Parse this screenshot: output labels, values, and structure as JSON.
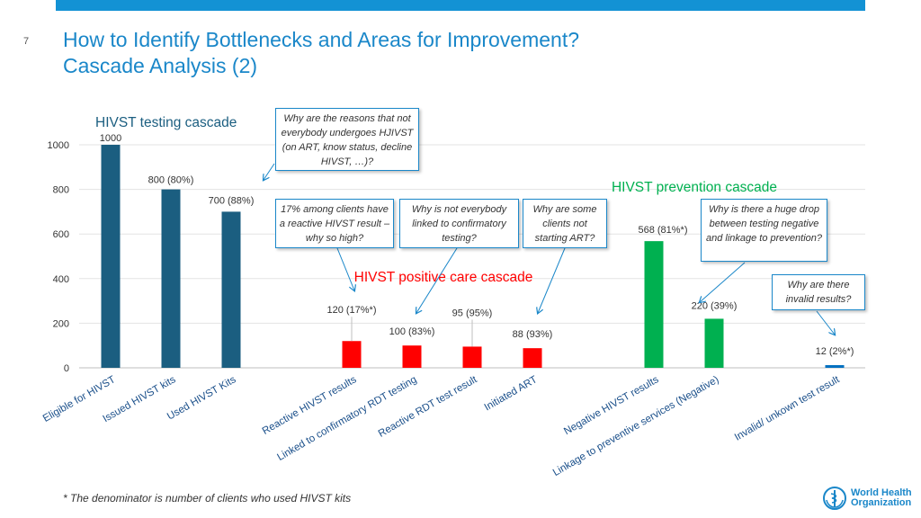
{
  "slide_number": "7",
  "title_line1": "How to Identify Bottlenecks and Areas for Improvement?",
  "title_line2": "Cascade Analysis (2)",
  "callouts": [
    "Why are the reasons that not everybody undergoes HJIVST (on ART, know status, decline HIVST, …)?",
    "17% among clients have a reactive HIVST result – why so high?",
    "Why is not everybody linked to confirmatory testing?",
    "Why are some clients not starting ART?",
    "Why is there a huge drop between testing negative and linkage to prevention?",
    "Why are there invalid results?"
  ],
  "footnote": "* The denominator is number of clients who used HIVST kits",
  "logo_text": [
    "World Health",
    "Organization"
  ],
  "colors": {
    "testing": "#1b5e80",
    "positive": "#ff0000",
    "prevention": "#00b050",
    "invalid": "#0070c0",
    "accent": "#1a87c9"
  },
  "chart_data": {
    "type": "bar",
    "ylim": [
      0,
      1000
    ],
    "yticks": [
      "0",
      "200",
      "400",
      "600",
      "800",
      "1000"
    ],
    "groups": [
      {
        "name": "HIVST testing cascade",
        "color": "#1b5e80",
        "name_color": "#1b5e80"
      },
      {
        "name": "HIVST positive care cascade",
        "color": "#ff0000",
        "name_color": "#ff0000"
      },
      {
        "name": "HIVST prevention cascade",
        "color": "#00b050",
        "name_color": "#00b050"
      }
    ],
    "bars": [
      {
        "category": "Eligible for HIVST",
        "value": 1000,
        "label": "1000",
        "color": "#1b5e80"
      },
      {
        "category": "Issued HIVST kits",
        "value": 800,
        "label": "800 (80%)",
        "color": "#1b5e80"
      },
      {
        "category": "Used HIVST Kits",
        "value": 700,
        "label": "700 (88%)",
        "color": "#1b5e80"
      },
      {
        "category": "Reactive HIVST results",
        "value": 120,
        "label": "120 (17%*)",
        "color": "#ff0000"
      },
      {
        "category": "Linked to confirmatory RDT testing",
        "value": 100,
        "label": "100 (83%)",
        "color": "#ff0000"
      },
      {
        "category": "Reactive RDT test result",
        "value": 95,
        "label": "95 (95%)",
        "color": "#ff0000"
      },
      {
        "category": "Initiated ART",
        "value": 88,
        "label": "88 (93%)",
        "color": "#ff0000"
      },
      {
        "category": "Negative HIVST results",
        "value": 568,
        "label": "568 (81%*)",
        "color": "#00b050"
      },
      {
        "category": "Linkage to preventive services (Negative)",
        "value": 220,
        "label": "220 (39%)",
        "color": "#00b050"
      },
      {
        "category": "Invalid/ unkown test result",
        "value": 12,
        "label": "12 (2%*)",
        "color": "#0070c0"
      }
    ]
  }
}
